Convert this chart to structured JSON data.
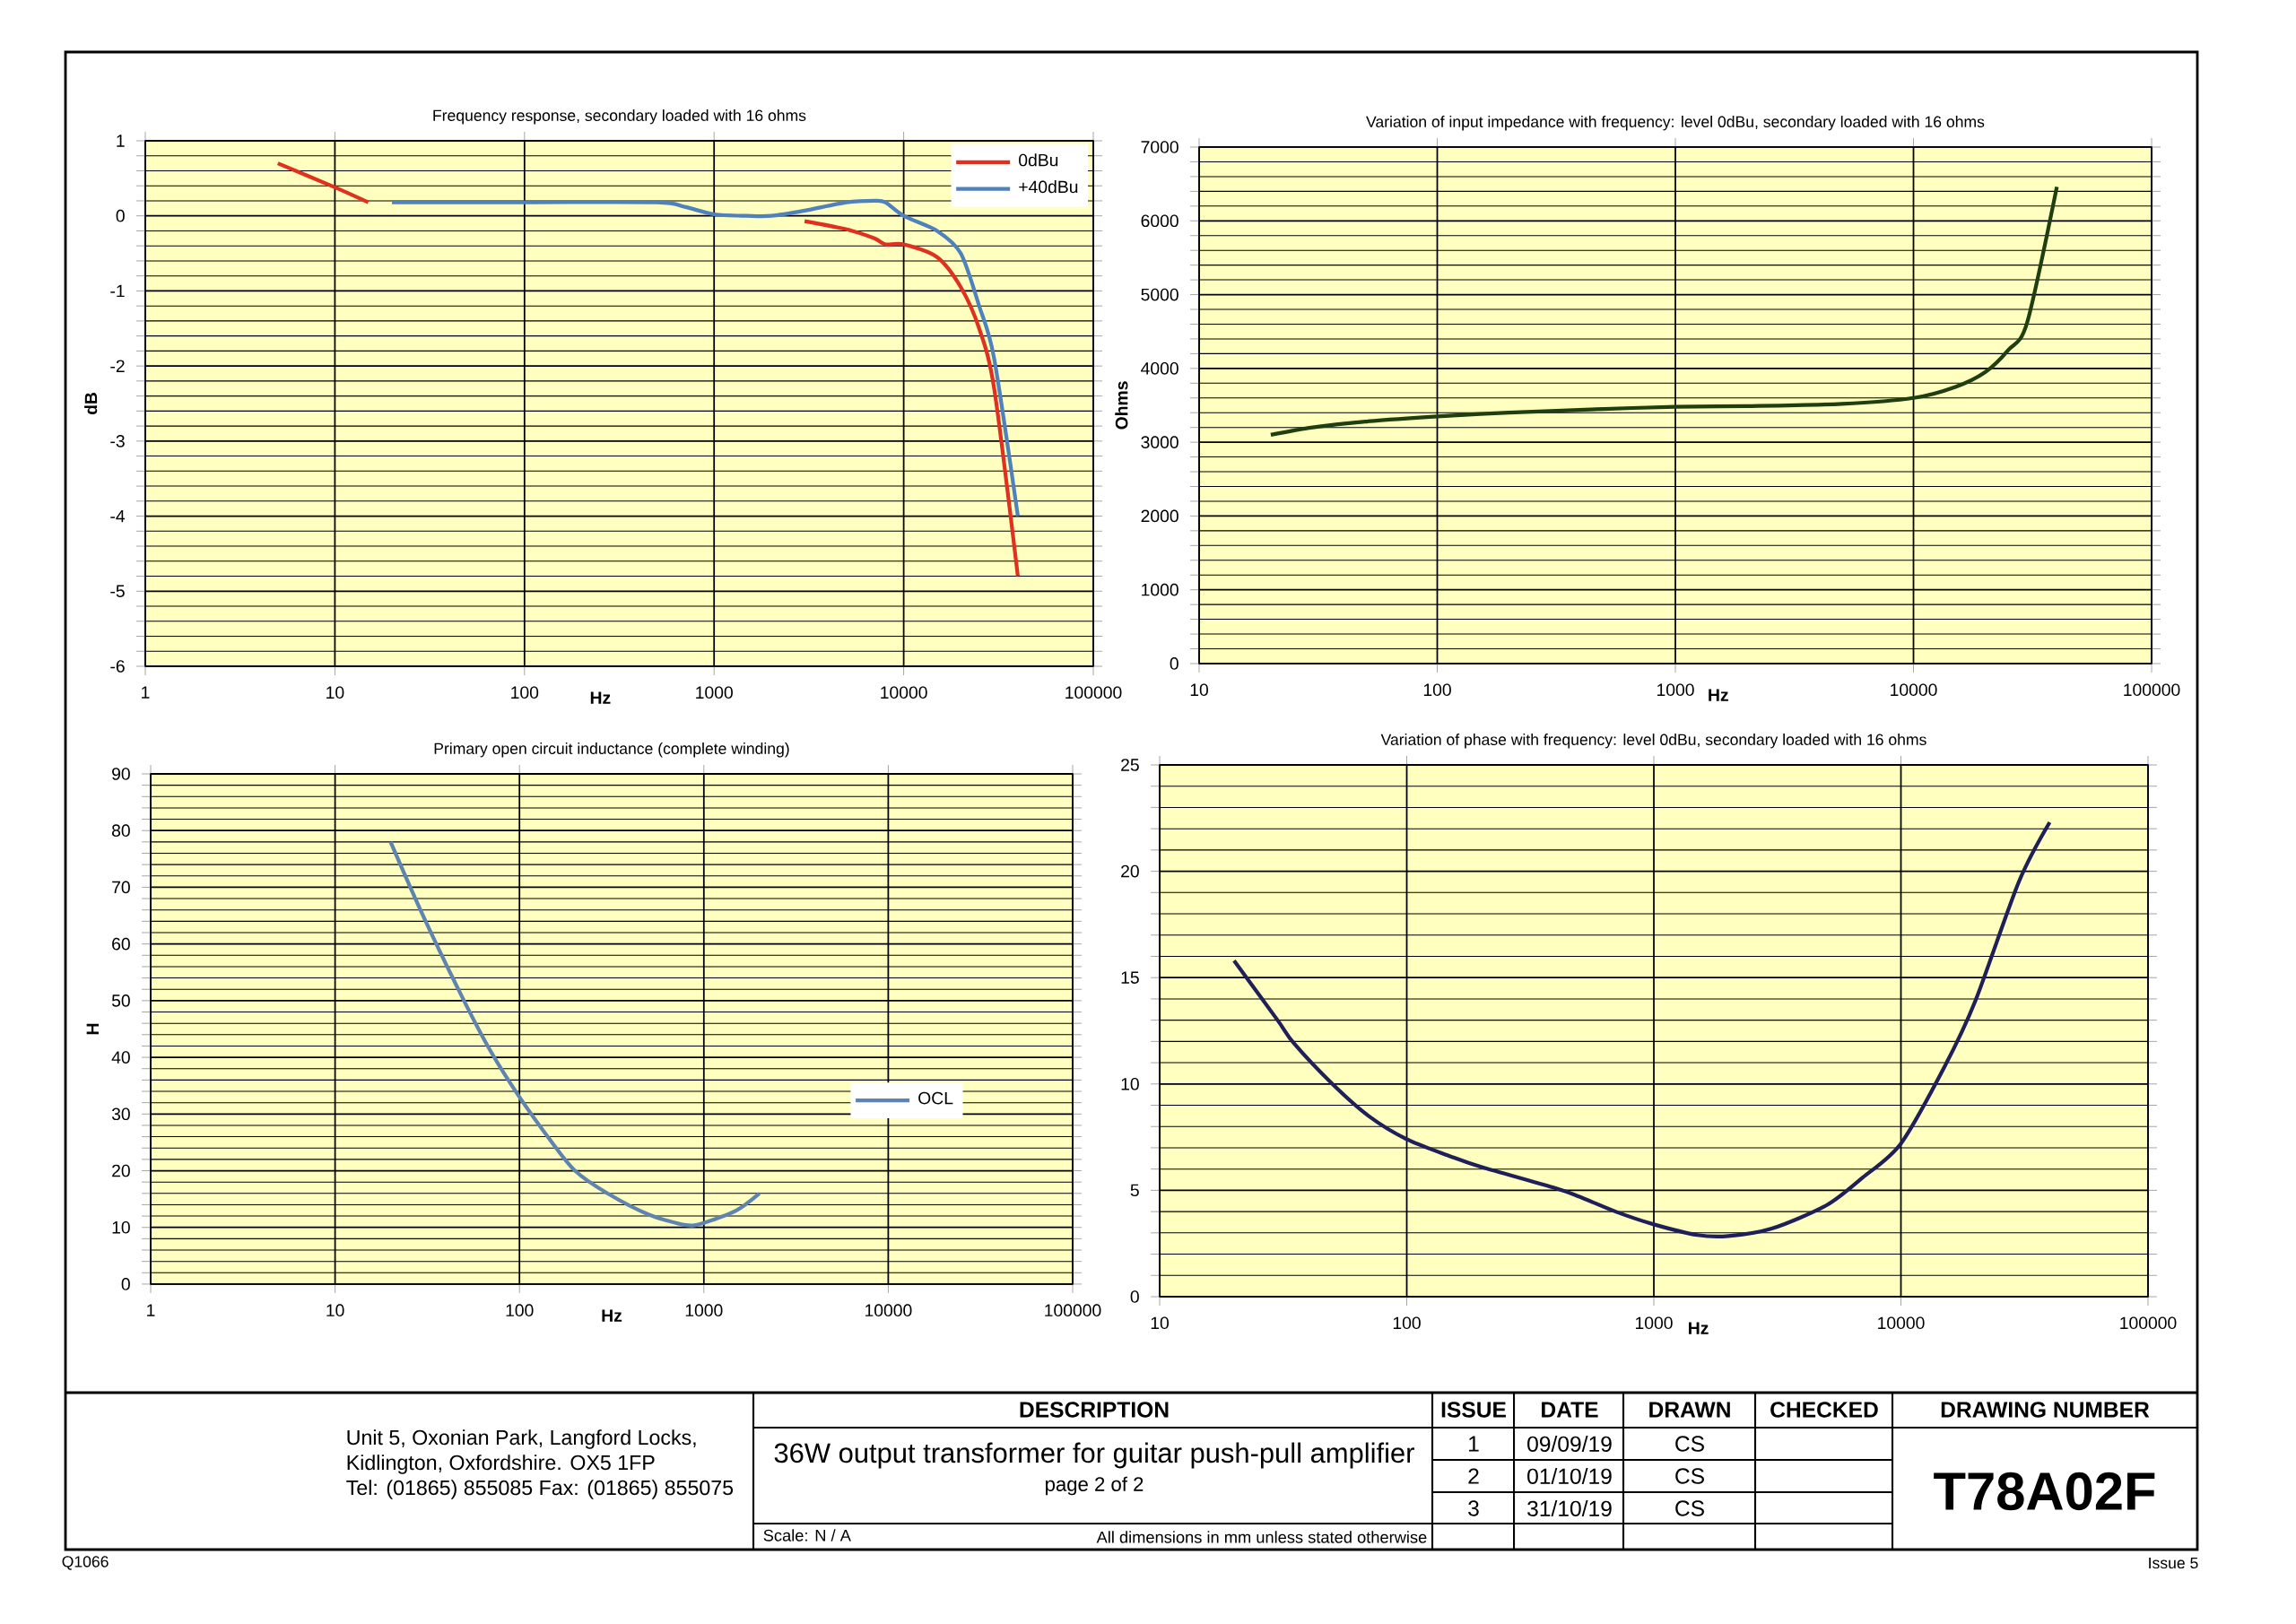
{
  "chart_data": [
    {
      "type": "line",
      "title": "Frequency response,  secondary loaded with 16 ohms",
      "xlabel": "Hz",
      "ylabel": "dB",
      "log": "x",
      "grid": true,
      "legend": "top right",
      "xlim": [
        1,
        100000
      ],
      "xticks": [
        1,
        10,
        100,
        1000,
        10000,
        100000
      ],
      "ylim": [
        -6,
        1
      ],
      "yticks": [
        -6,
        -5,
        -4,
        -3,
        -2,
        -1,
        0,
        1
      ],
      "x": [
        5,
        10,
        15,
        20,
        100,
        500,
        700,
        1000,
        1500,
        2000,
        3000,
        5000,
        7000,
        8000,
        10000,
        15000,
        20000,
        25000,
        30000,
        40000
      ],
      "series": [
        {
          "name": "0dBu",
          "color": "#e03020",
          "values": [
            0.7,
            0.38,
            0.18,
            null,
            null,
            null,
            null,
            null,
            null,
            null,
            -0.07,
            -0.18,
            -0.3,
            -0.38,
            -0.38,
            -0.55,
            -0.95,
            -1.5,
            -2.3,
            -4.8
          ]
        },
        {
          "name": "+40dBu",
          "color": "#4f81bd",
          "values": [
            null,
            null,
            null,
            0.18,
            0.18,
            0.18,
            0.12,
            0.02,
            0.0,
            0.0,
            0.07,
            0.18,
            0.2,
            0.18,
            0.0,
            -0.2,
            -0.5,
            -1.2,
            -1.9,
            -4.0
          ]
        }
      ]
    },
    {
      "type": "line",
      "title": "Variation of input impedance with frequency:  level 0dBu, secondary loaded with 16 ohms",
      "xlabel": "Hz",
      "ylabel": "Ohms",
      "log": "x",
      "grid": true,
      "xlim": [
        10,
        100000
      ],
      "xticks": [
        10,
        100,
        1000,
        10000,
        100000
      ],
      "ylim": [
        0,
        7000
      ],
      "yticks": [
        0,
        1000,
        2000,
        3000,
        4000,
        5000,
        6000,
        7000
      ],
      "x": [
        20,
        30,
        50,
        100,
        200,
        500,
        1000,
        2000,
        5000,
        10000,
        15000,
        20000,
        25000,
        30000,
        40000
      ],
      "series": [
        {
          "color": "#1f3f10",
          "values": [
            3100,
            3200,
            3280,
            3350,
            3400,
            3450,
            3480,
            3490,
            3520,
            3600,
            3750,
            3950,
            4250,
            4620,
            6460
          ]
        }
      ]
    },
    {
      "type": "line",
      "title": "Primary open circuit inductance (complete winding)",
      "xlabel": "Hz",
      "ylabel": "H",
      "log": "x",
      "grid": true,
      "legend": "right",
      "xlim": [
        1,
        100000
      ],
      "xticks": [
        1,
        10,
        100,
        1000,
        10000,
        100000
      ],
      "ylim": [
        0,
        90
      ],
      "yticks": [
        0,
        10,
        20,
        30,
        40,
        50,
        60,
        70,
        80,
        90
      ],
      "x": [
        20,
        30,
        50,
        70,
        100,
        150,
        200,
        300,
        500,
        800,
        1000,
        1500,
        2000
      ],
      "series": [
        {
          "name": "OCL",
          "color": "#5f84b0",
          "values": [
            78,
            65,
            50,
            41,
            33,
            25,
            20,
            16,
            12.3,
            10.4,
            10.8,
            13,
            16
          ]
        }
      ]
    },
    {
      "type": "line",
      "title": "Variation of phase with frequency:  level 0dBu, secondary loaded with 16 ohms",
      "xlabel": "Hz",
      "log": "x",
      "grid": true,
      "xlim": [
        10,
        100000
      ],
      "xticks": [
        10,
        100,
        1000,
        10000,
        100000
      ],
      "ylim": [
        0,
        25
      ],
      "yticks": [
        0,
        5,
        10,
        15,
        20,
        25
      ],
      "x": [
        20,
        30,
        35,
        50,
        70,
        100,
        150,
        200,
        400,
        500,
        700,
        1000,
        1500,
        2000,
        3000,
        5000,
        7000,
        10000,
        15000,
        20000,
        30000,
        40000
      ],
      "series": [
        {
          "color": "#1f1f5a",
          "values": [
            15.8,
            13,
            11.9,
            10,
            8.5,
            7.4,
            6.6,
            6.1,
            5.1,
            4.7,
            4.0,
            3.4,
            2.9,
            2.85,
            3.2,
            4.3,
            5.6,
            7.2,
            10.8,
            13.9,
            19.5,
            22.3
          ]
        }
      ]
    },
    {
      "type": "other",
      "annotations": [
        "Unit 5, Oxonian Park, Langford Locks,",
        "Kidlington, Oxfordshire.  OX5 1FP",
        "Tel: (01865) 855085 Fax: (01865) 855075",
        "DESCRIPTION",
        "36W output transformer for guitar push-pull amplifier",
        "page 2 of 2",
        "Scale: N / A",
        "All dimensions in mm unless stated otherwise",
        "ISSUE",
        "DATE",
        "DRAWN",
        "CHECKED",
        "DRAWING NUMBER",
        "1",
        "09/09/19",
        "CS",
        "2",
        "01/10/19",
        "CS",
        "3",
        "31/10/19",
        "CS",
        "T78A02F",
        "Q1066",
        "Issue 5"
      ]
    }
  ]
}
